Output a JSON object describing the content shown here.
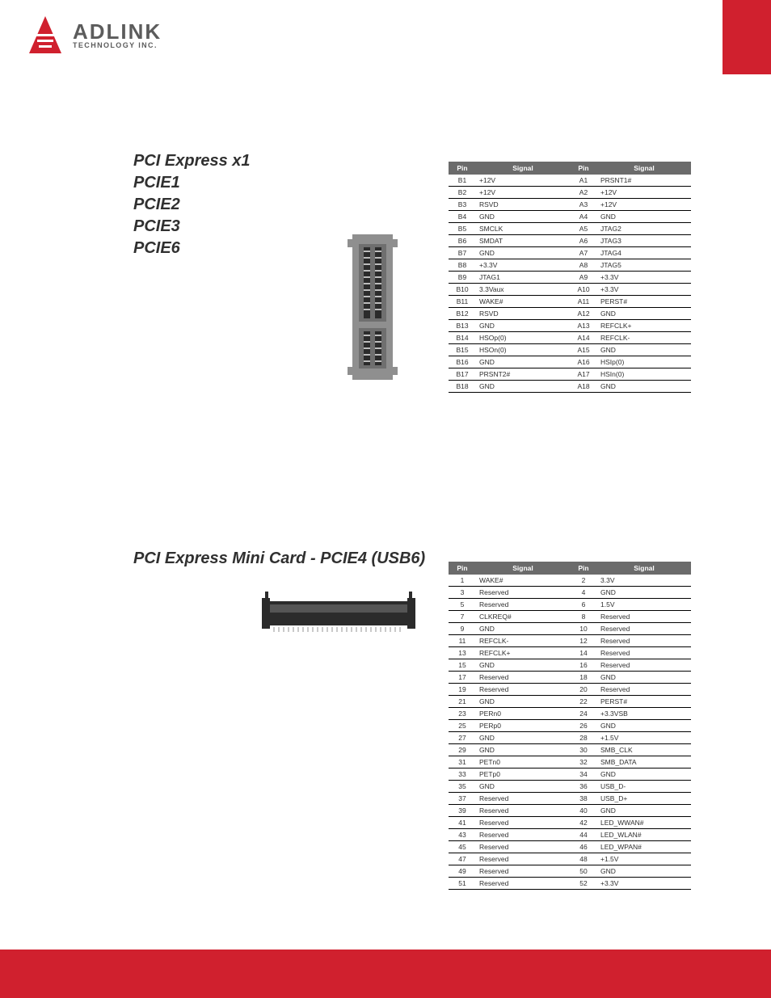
{
  "brand": {
    "name": "ADLINK",
    "sub": "TECHNOLOGY INC."
  },
  "section1": {
    "heading": "PCI Express x1",
    "labels": [
      "PCIE1",
      "PCIE2",
      "PCIE3",
      "PCIE6"
    ],
    "header_bg": "#6b6b6b",
    "header_fg": "#ffffff",
    "columns": [
      "Pin",
      "Signal",
      "Pin",
      "Signal"
    ],
    "rows": [
      [
        "B1",
        "+12V",
        "A1",
        "PRSNT1#"
      ],
      [
        "B2",
        "+12V",
        "A2",
        "+12V"
      ],
      [
        "B3",
        "RSVD",
        "A3",
        "+12V"
      ],
      [
        "B4",
        "GND",
        "A4",
        "GND"
      ],
      [
        "B5",
        "SMCLK",
        "A5",
        "JTAG2"
      ],
      [
        "B6",
        "SMDAT",
        "A6",
        "JTAG3"
      ],
      [
        "B7",
        "GND",
        "A7",
        "JTAG4"
      ],
      [
        "B8",
        "+3.3V",
        "A8",
        "JTAG5"
      ],
      [
        "B9",
        "JTAG1",
        "A9",
        "+3.3V"
      ],
      [
        "B10",
        "3.3Vaux",
        "A10",
        "+3.3V"
      ],
      [
        "B11",
        "WAKE#",
        "A11",
        "PERST#"
      ],
      [
        "B12",
        "RSVD",
        "A12",
        "GND"
      ],
      [
        "B13",
        "GND",
        "A13",
        "REFCLK+"
      ],
      [
        "B14",
        "HSOp(0)",
        "A14",
        "REFCLK-"
      ],
      [
        "B15",
        "HSOn(0)",
        "A15",
        "GND"
      ],
      [
        "B16",
        "GND",
        "A16",
        "HSIp(0)"
      ],
      [
        "B17",
        "PRSNT2#",
        "A17",
        "HSIn(0)"
      ],
      [
        "B18",
        "GND",
        "A18",
        "GND"
      ]
    ]
  },
  "section2": {
    "heading": "PCI Express Mini Card - PCIE4 (USB6)",
    "header_bg": "#6b6b6b",
    "header_fg": "#ffffff",
    "columns": [
      "Pin",
      "Signal",
      "Pin",
      "Signal"
    ],
    "rows": [
      [
        "1",
        "WAKE#",
        "2",
        "3.3V"
      ],
      [
        "3",
        "Reserved",
        "4",
        "GND"
      ],
      [
        "5",
        "Reserved",
        "6",
        "1.5V"
      ],
      [
        "7",
        "CLKREQ#",
        "8",
        "Reserved"
      ],
      [
        "9",
        "GND",
        "10",
        "Reserved"
      ],
      [
        "11",
        "REFCLK-",
        "12",
        "Reserved"
      ],
      [
        "13",
        "REFCLK+",
        "14",
        "Reserved"
      ],
      [
        "15",
        "GND",
        "16",
        "Reserved"
      ],
      [
        "17",
        "Reserved",
        "18",
        "GND"
      ],
      [
        "19",
        "Reserved",
        "20",
        "Reserved"
      ],
      [
        "21",
        "GND",
        "22",
        "PERST#"
      ],
      [
        "23",
        "PERn0",
        "24",
        "+3.3VSB"
      ],
      [
        "25",
        "PERp0",
        "26",
        "GND"
      ],
      [
        "27",
        "GND",
        "28",
        "+1.5V"
      ],
      [
        "29",
        "GND",
        "30",
        "SMB_CLK"
      ],
      [
        "31",
        "PETn0",
        "32",
        "SMB_DATA"
      ],
      [
        "33",
        "PETp0",
        "34",
        "GND"
      ],
      [
        "35",
        "GND",
        "36",
        "USB_D-"
      ],
      [
        "37",
        "Reserved",
        "38",
        "USB_D+"
      ],
      [
        "39",
        "Reserved",
        "40",
        "GND"
      ],
      [
        "41",
        "Reserved",
        "42",
        "LED_WWAN#"
      ],
      [
        "43",
        "Reserved",
        "44",
        "LED_WLAN#"
      ],
      [
        "45",
        "Reserved",
        "46",
        "LED_WPAN#"
      ],
      [
        "47",
        "Reserved",
        "48",
        "+1.5V"
      ],
      [
        "49",
        "Reserved",
        "50",
        "GND"
      ],
      [
        "51",
        "Reserved",
        "52",
        "+3.3V"
      ]
    ]
  },
  "colors": {
    "accent_red": "#d0202e",
    "header_gray": "#6b6b6b",
    "text": "#303030",
    "connector_body": "#8f8f8f",
    "connector_dark": "#2b2b2b",
    "page_bg": "#ffffff"
  }
}
